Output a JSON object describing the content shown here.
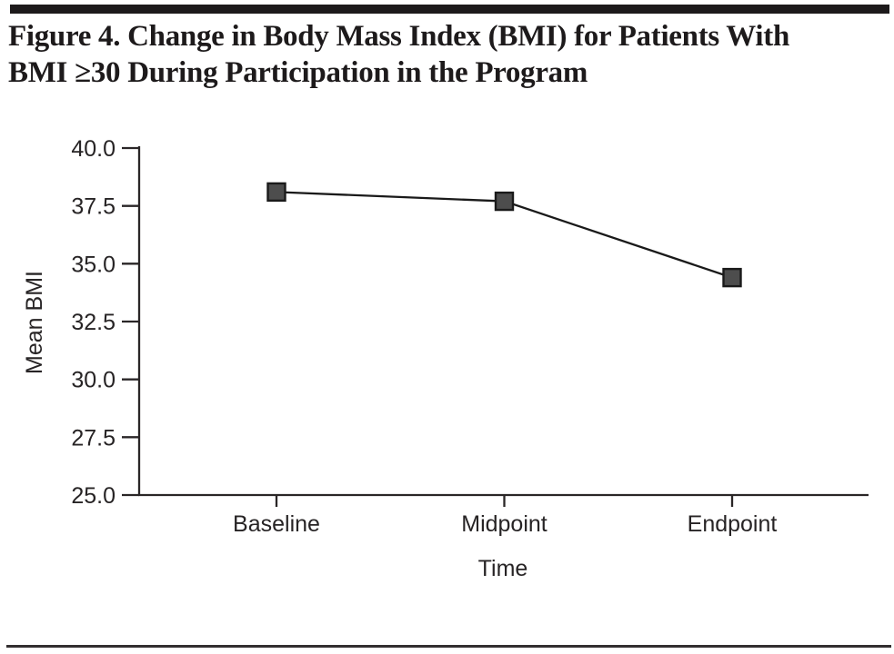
{
  "figure": {
    "title_lines": [
      "Figure 4. Change in Body Mass Index (BMI) for Patients With",
      "BMI ≥30 During Participation in the Program"
    ]
  },
  "chart_data": {
    "type": "line",
    "categories": [
      "Baseline",
      "Midpoint",
      "Endpoint"
    ],
    "series": [
      {
        "name": "Mean BMI",
        "values": [
          38.1,
          37.7,
          34.4
        ]
      }
    ],
    "title": "",
    "xlabel": "Time",
    "ylabel": "Mean BMI",
    "ylim": [
      25.0,
      40.0
    ],
    "y_ticks": [
      "40.0",
      "37.5",
      "35.0",
      "32.5",
      "30.0",
      "27.5",
      "25.0"
    ],
    "marker": "square",
    "grid": false,
    "legend": "none"
  },
  "colors": {
    "ink": "#272425",
    "axis": "#2a2627",
    "line": "#1a1a1a",
    "marker_fill": "#4d4d4d",
    "marker_stroke": "#1a1a1a"
  }
}
